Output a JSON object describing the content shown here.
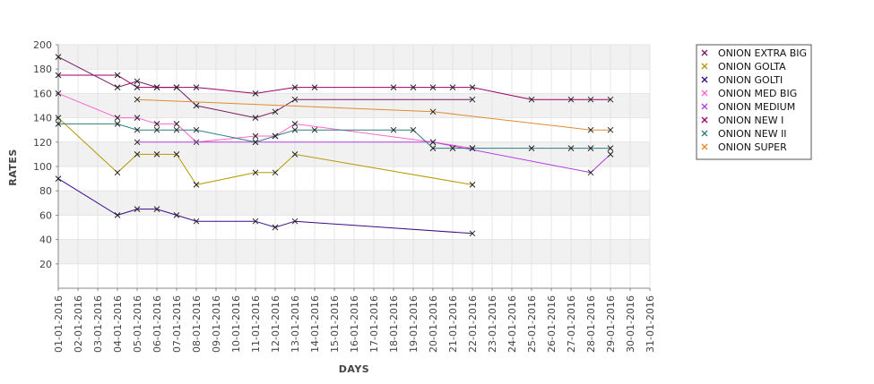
{
  "chart_data": {
    "type": "line",
    "xlabel": "DAYS",
    "ylabel": "RATES",
    "ylim": [
      0,
      200
    ],
    "yticks": [
      20,
      40,
      60,
      80,
      100,
      120,
      140,
      160,
      180,
      200
    ],
    "x_range": [
      "01-01-2016",
      "31-01-2016"
    ],
    "x_tick_labels": [
      "01-01-2016",
      "02-01-2016",
      "03-01-2016",
      "04-01-2016",
      "05-01-2016",
      "06-01-2016",
      "07-01-2016",
      "08-01-2016",
      "09-01-2016",
      "10-01-2016",
      "11-01-2016",
      "12-01-2016",
      "13-01-2016",
      "14-01-2016",
      "15-01-2016",
      "16-01-2016",
      "17-01-2016",
      "18-01-2016",
      "19-01-2016",
      "20-01-2016",
      "21-01-2016",
      "22-01-2016",
      "23-01-2016",
      "24-01-2016",
      "25-01-2016",
      "26-01-2016",
      "27-01-2016",
      "28-01-2016",
      "29-01-2016",
      "30-01-2016",
      "31-01-2016"
    ],
    "grid": true,
    "alternating_bands": true,
    "legend_position": "right",
    "marker": "x",
    "series": [
      {
        "name": "ONION EXTRA BIG",
        "color": "#7a1a66",
        "points": [
          [
            "01-01-2016",
            190
          ],
          [
            "04-01-2016",
            165
          ],
          [
            "05-01-2016",
            170
          ],
          [
            "06-01-2016",
            165
          ],
          [
            "07-01-2016",
            165
          ],
          [
            "08-01-2016",
            150
          ],
          [
            "11-01-2016",
            140
          ],
          [
            "12-01-2016",
            145
          ],
          [
            "13-01-2016",
            155
          ],
          [
            "22-01-2016",
            155
          ]
        ]
      },
      {
        "name": "ONION GOLTA",
        "color": "#b49a00",
        "points": [
          [
            "01-01-2016",
            140
          ],
          [
            "04-01-2016",
            95
          ],
          [
            "05-01-2016",
            110
          ],
          [
            "06-01-2016",
            110
          ],
          [
            "07-01-2016",
            110
          ],
          [
            "08-01-2016",
            85
          ],
          [
            "11-01-2016",
            95
          ],
          [
            "12-01-2016",
            95
          ],
          [
            "13-01-2016",
            110
          ],
          [
            "22-01-2016",
            85
          ]
        ]
      },
      {
        "name": "ONION GOLTI",
        "color": "#3a0a8a",
        "points": [
          [
            "01-01-2016",
            90
          ],
          [
            "04-01-2016",
            60
          ],
          [
            "05-01-2016",
            65
          ],
          [
            "06-01-2016",
            65
          ],
          [
            "07-01-2016",
            60
          ],
          [
            "08-01-2016",
            55
          ],
          [
            "11-01-2016",
            55
          ],
          [
            "12-01-2016",
            50
          ],
          [
            "13-01-2016",
            55
          ],
          [
            "22-01-2016",
            45
          ]
        ]
      },
      {
        "name": "ONION MED BIG",
        "color": "#ff66cc",
        "points": [
          [
            "01-01-2016",
            160
          ],
          [
            "04-01-2016",
            140
          ],
          [
            "05-01-2016",
            140
          ],
          [
            "06-01-2016",
            135
          ],
          [
            "07-01-2016",
            135
          ],
          [
            "08-01-2016",
            120
          ],
          [
            "11-01-2016",
            125
          ],
          [
            "12-01-2016",
            125
          ],
          [
            "13-01-2016",
            135
          ],
          [
            "20-01-2016",
            120
          ],
          [
            "22-01-2016",
            115
          ]
        ]
      },
      {
        "name": "ONION MEDIUM",
        "color": "#b040e0",
        "points": [
          [
            "05-01-2016",
            120
          ],
          [
            "11-01-2016",
            120
          ],
          [
            "20-01-2016",
            120
          ],
          [
            "28-01-2016",
            95
          ],
          [
            "29-01-2016",
            110
          ]
        ]
      },
      {
        "name": "ONION NEW I",
        "color": "#99006b",
        "points": [
          [
            "01-01-2016",
            175
          ],
          [
            "04-01-2016",
            175
          ],
          [
            "05-01-2016",
            165
          ],
          [
            "06-01-2016",
            165
          ],
          [
            "07-01-2016",
            165
          ],
          [
            "08-01-2016",
            165
          ],
          [
            "11-01-2016",
            160
          ],
          [
            "13-01-2016",
            165
          ],
          [
            "14-01-2016",
            165
          ],
          [
            "18-01-2016",
            165
          ],
          [
            "19-01-2016",
            165
          ],
          [
            "20-01-2016",
            165
          ],
          [
            "21-01-2016",
            165
          ],
          [
            "22-01-2016",
            165
          ],
          [
            "25-01-2016",
            155
          ],
          [
            "27-01-2016",
            155
          ],
          [
            "28-01-2016",
            155
          ],
          [
            "29-01-2016",
            155
          ]
        ]
      },
      {
        "name": "ONION NEW II",
        "color": "#2f7f7f",
        "points": [
          [
            "01-01-2016",
            135
          ],
          [
            "04-01-2016",
            135
          ],
          [
            "05-01-2016",
            130
          ],
          [
            "06-01-2016",
            130
          ],
          [
            "07-01-2016",
            130
          ],
          [
            "08-01-2016",
            130
          ],
          [
            "11-01-2016",
            120
          ],
          [
            "12-01-2016",
            125
          ],
          [
            "13-01-2016",
            130
          ],
          [
            "14-01-2016",
            130
          ],
          [
            "18-01-2016",
            130
          ],
          [
            "19-01-2016",
            130
          ],
          [
            "20-01-2016",
            115
          ],
          [
            "21-01-2016",
            115
          ],
          [
            "22-01-2016",
            115
          ],
          [
            "25-01-2016",
            115
          ],
          [
            "27-01-2016",
            115
          ],
          [
            "28-01-2016",
            115
          ],
          [
            "29-01-2016",
            115
          ]
        ]
      },
      {
        "name": "ONION SUPER",
        "color": "#e08a30",
        "points": [
          [
            "05-01-2016",
            155
          ],
          [
            "20-01-2016",
            145
          ],
          [
            "28-01-2016",
            130
          ],
          [
            "29-01-2016",
            130
          ]
        ]
      }
    ]
  }
}
